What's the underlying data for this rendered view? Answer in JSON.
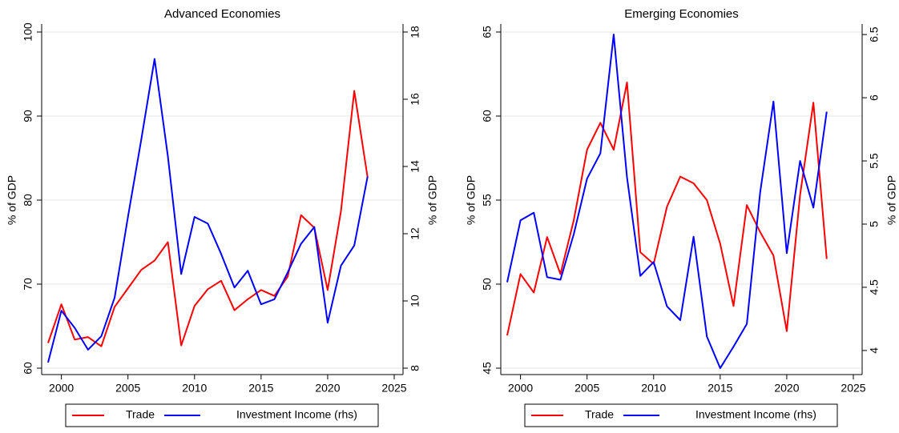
{
  "chart_data": [
    {
      "type": "line",
      "title": "Advanced Economies",
      "x": [
        1999,
        2000,
        2001,
        2002,
        2003,
        2004,
        2005,
        2006,
        2007,
        2008,
        2009,
        2010,
        2011,
        2012,
        2013,
        2014,
        2015,
        2016,
        2017,
        2018,
        2019,
        2020,
        2021,
        2022,
        2023
      ],
      "series": [
        {
          "name": "Trade",
          "color": "#ff0000",
          "axis": "y",
          "values": [
            63.0,
            67.6,
            63.4,
            63.7,
            62.6,
            67.3,
            69.5,
            71.7,
            72.8,
            75.0,
            62.7,
            67.4,
            69.4,
            70.4,
            66.9,
            68.2,
            69.3,
            68.6,
            70.9,
            78.2,
            76.7,
            69.3,
            78.7,
            93.0,
            82.7
          ]
        },
        {
          "name": "Investment Income (rhs)",
          "color": "#0000ff",
          "axis": "y2",
          "values": [
            8.17,
            9.71,
            9.2,
            8.55,
            8.95,
            10.1,
            12.5,
            14.8,
            17.2,
            14.3,
            10.8,
            12.5,
            12.3,
            11.4,
            10.4,
            10.9,
            9.9,
            10.05,
            10.85,
            11.7,
            12.2,
            9.35,
            11.05,
            11.65,
            13.7
          ]
        }
      ],
      "xlim": [
        1999,
        2025
      ],
      "xticks": [
        2000,
        2005,
        2010,
        2015,
        2020,
        2025
      ],
      "ylim": [
        60,
        100
      ],
      "yticks": [
        60,
        70,
        80,
        90,
        100
      ],
      "ylabel": "% of GDP",
      "y2lim": [
        8,
        18
      ],
      "y2ticks": [
        8,
        10,
        12,
        14,
        16,
        18
      ],
      "y2label": "% of GDP",
      "grid": true,
      "legend": "bottom"
    },
    {
      "type": "line",
      "title": "Emerging Economies",
      "x": [
        1999,
        2000,
        2001,
        2002,
        2003,
        2004,
        2005,
        2006,
        2007,
        2008,
        2009,
        2010,
        2011,
        2012,
        2013,
        2014,
        2015,
        2016,
        2017,
        2018,
        2019,
        2020,
        2021,
        2022,
        2023
      ],
      "series": [
        {
          "name": "Trade",
          "color": "#ff0000",
          "axis": "y",
          "values": [
            46.95,
            50.6,
            49.5,
            52.8,
            50.6,
            53.8,
            58.0,
            59.6,
            58.0,
            62.0,
            51.9,
            51.2,
            54.6,
            56.4,
            56.0,
            55.0,
            52.4,
            48.7,
            54.7,
            53.1,
            51.7,
            47.2,
            55.3,
            60.8,
            51.5
          ]
        },
        {
          "name": "Investment Income (rhs)",
          "color": "#0000ff",
          "axis": "y2",
          "values": [
            4.54,
            5.03,
            5.09,
            4.58,
            4.56,
            4.92,
            5.36,
            5.56,
            6.5,
            5.37,
            4.59,
            4.7,
            4.35,
            4.24,
            4.9,
            4.11,
            3.86,
            4.03,
            4.21,
            5.25,
            5.97,
            4.77,
            5.5,
            5.13,
            5.89
          ]
        }
      ],
      "xlim": [
        1999,
        2025
      ],
      "xticks": [
        2000,
        2005,
        2010,
        2015,
        2020,
        2025
      ],
      "ylim": [
        45,
        65
      ],
      "yticks": [
        45,
        50,
        55,
        60,
        65
      ],
      "ylabel": "% of GDP",
      "y2lim": [
        3.86,
        6.52
      ],
      "y2ticks": [
        4,
        4.5,
        5,
        5.5,
        6,
        6.5
      ],
      "y2label": "% of GDP",
      "grid": true,
      "legend": "bottom"
    }
  ]
}
